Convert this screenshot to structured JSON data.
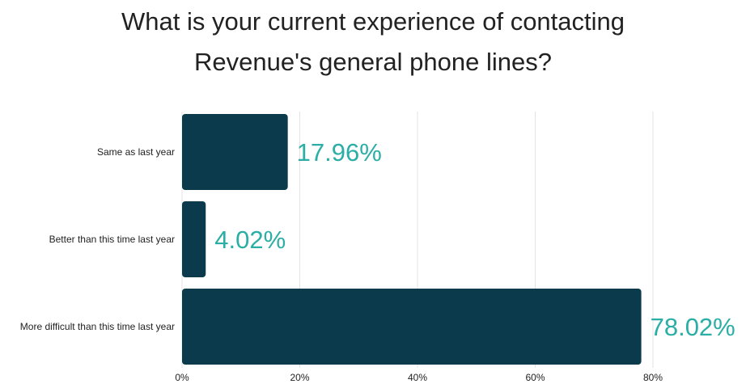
{
  "chart_data": {
    "type": "bar",
    "orientation": "horizontal",
    "title": "What is your current experience of contacting Revenue's general phone lines?",
    "title_lines": [
      "What is your current experience of contacting",
      "Revenue's general phone lines?"
    ],
    "categories": [
      "Same as last year",
      "Better than this time last year",
      "More difficult than this time last year"
    ],
    "values": [
      17.96,
      4.02,
      78.02
    ],
    "value_labels": [
      "17.96%",
      "4.02%",
      "78.02%"
    ],
    "xlabel": "",
    "ylabel": "",
    "xlim": [
      0,
      80
    ],
    "x_ticks": [
      0,
      20,
      40,
      60,
      80
    ],
    "x_tick_labels": [
      "0%",
      "20%",
      "40%",
      "60%",
      "80%"
    ],
    "grid": true,
    "legend": "none",
    "colors": {
      "bar": "#0b3a4d",
      "value_label": "#2aaea5",
      "grid": "#e3e3e3"
    }
  }
}
